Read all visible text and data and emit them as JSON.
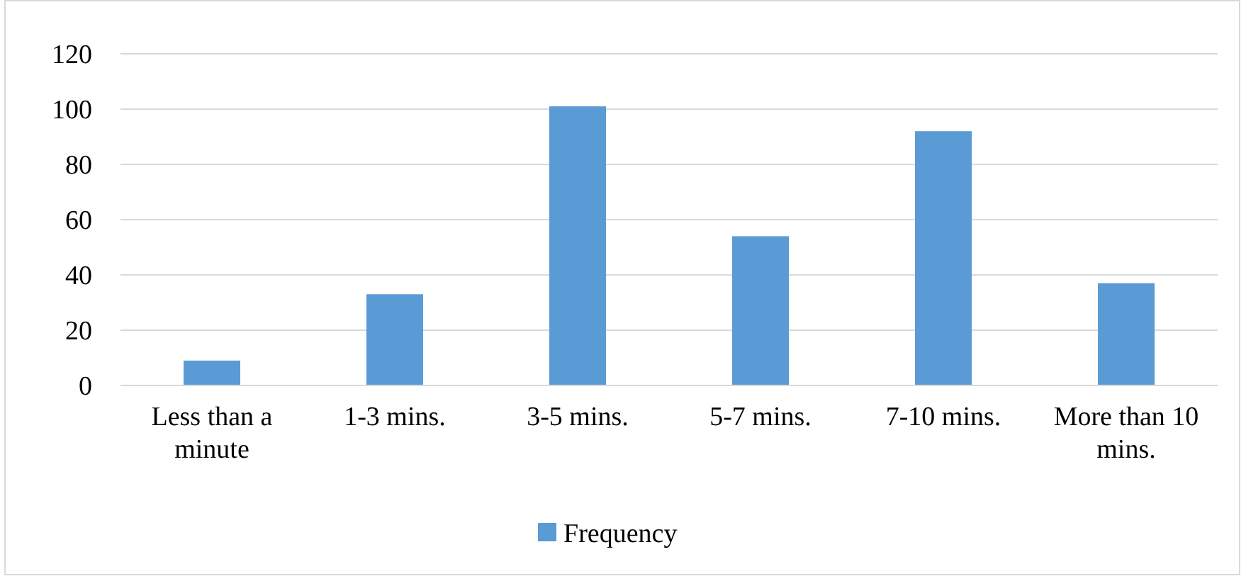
{
  "chart_data": {
    "type": "bar",
    "categories": [
      "Less than a minute",
      "1-3 mins.",
      "3-5 mins.",
      "5-7 mins.",
      "7-10 mins.",
      "More than 10 mins."
    ],
    "series": [
      {
        "name": "Frequency",
        "color": "#5b9bd5",
        "values": [
          9,
          33,
          101,
          54,
          92,
          37
        ]
      }
    ],
    "ylim": [
      0,
      120
    ],
    "yticks": [
      0,
      20,
      40,
      60,
      80,
      100,
      120
    ],
    "grid": "y",
    "legend": "bottom"
  }
}
